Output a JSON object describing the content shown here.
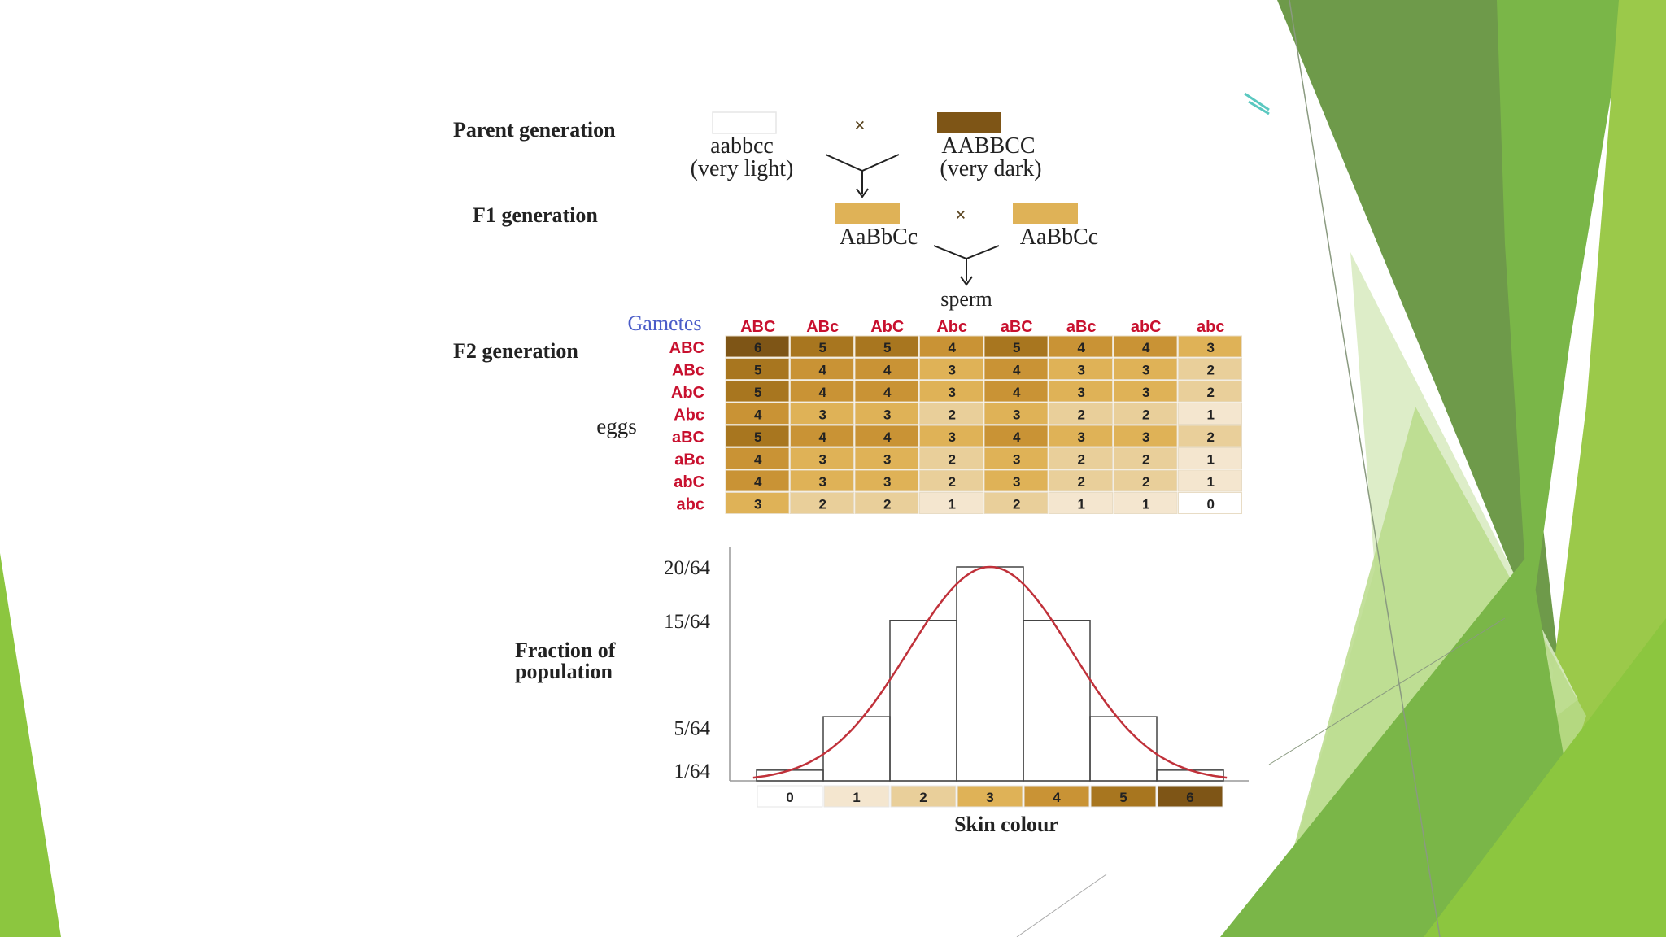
{
  "parent_generation": {
    "label": "Parent generation",
    "cross_symbol": "×",
    "left_genotype": "aabbcc",
    "left_phenotype": "(very light)",
    "right_genotype": "AABBCC",
    "right_phenotype": "(very dark)"
  },
  "f1_generation": {
    "label": "F1 generation",
    "cross_symbol": "×",
    "left_genotype": "AaBbCc",
    "right_genotype": "AaBbCc"
  },
  "sperm_label": "sperm",
  "eggs_label": "eggs",
  "gametes_label": "Gametes",
  "f2_label": "F2 generation",
  "sperm_gametes": [
    "ABC",
    "ABc",
    "AbC",
    "Abc",
    "aBC",
    "aBc",
    "abC",
    "abc"
  ],
  "egg_gametes": [
    "ABC",
    "ABc",
    "AbC",
    "Abc",
    "aBC",
    "aBc",
    "abC",
    "abc"
  ],
  "grid": [
    [
      6,
      5,
      5,
      4,
      5,
      4,
      4,
      3
    ],
    [
      5,
      4,
      4,
      3,
      4,
      3,
      3,
      2
    ],
    [
      5,
      4,
      4,
      3,
      4,
      3,
      3,
      2
    ],
    [
      4,
      3,
      3,
      2,
      3,
      2,
      2,
      1
    ],
    [
      5,
      4,
      4,
      3,
      4,
      3,
      3,
      2
    ],
    [
      4,
      3,
      3,
      2,
      3,
      2,
      2,
      1
    ],
    [
      4,
      3,
      3,
      2,
      3,
      2,
      2,
      1
    ],
    [
      3,
      2,
      2,
      1,
      2,
      1,
      1,
      0
    ]
  ],
  "shade_colors": [
    "#ffffff",
    "#f4e6cf",
    "#e9cf9a",
    "#dfb257",
    "#c99335",
    "#a8761f",
    "#7e5516"
  ],
  "gamete_color": "#c8102e",
  "gametes_color": "#4a5cc8",
  "curve_color": "#c0313a",
  "chart_data": {
    "type": "bar",
    "categories": [
      "0",
      "1",
      "2",
      "3",
      "4",
      "5",
      "6"
    ],
    "values": [
      1,
      6,
      15,
      20,
      15,
      6,
      1
    ],
    "denominator": 64,
    "ylabel": "Fraction of population",
    "xlabel": "Skin colour",
    "ytick_labels": [
      "1/64",
      "5/64",
      "15/64",
      "20/64"
    ],
    "ytick_values": [
      1,
      5,
      15,
      20
    ],
    "overlay": "normal-curve"
  }
}
